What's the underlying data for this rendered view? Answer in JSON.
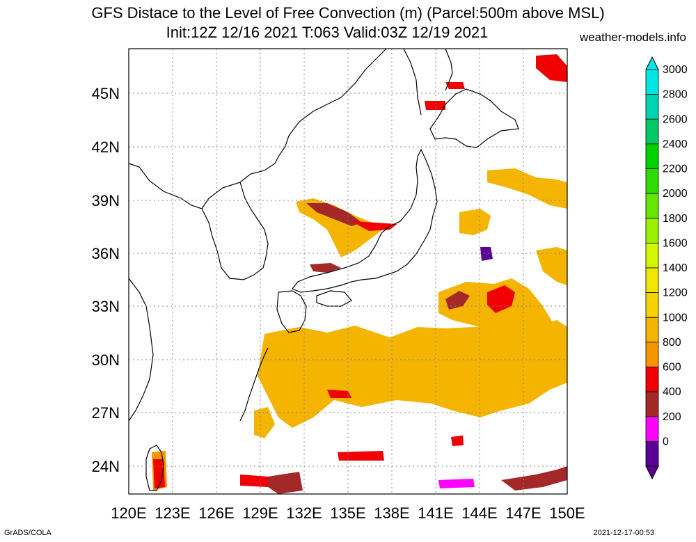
{
  "title": {
    "line1": "GFS Distace to the Level of Free Convection (m) (Parcel:500m above MSL)",
    "line2": "Init:12Z 12/16 2021 T:063 Valid:03Z 12/19 2021",
    "site": "weather-models.info"
  },
  "axes": {
    "lat_labels": [
      "45N",
      "42N",
      "39N",
      "36N",
      "33N",
      "30N",
      "27N",
      "24N"
    ],
    "lon_labels": [
      "120E",
      "123E",
      "126E",
      "129E",
      "132E",
      "135E",
      "138E",
      "141E",
      "144E",
      "147E",
      "150E"
    ]
  },
  "colorbar": {
    "labels": [
      "3000",
      "2800",
      "2600",
      "2400",
      "2200",
      "2000",
      "1800",
      "1600",
      "1400",
      "1200",
      "1000",
      "800",
      "600",
      "400",
      "200",
      "0"
    ],
    "colors": [
      "#00e6e6",
      "#00d2b4",
      "#00c864",
      "#00d200",
      "#2ddc00",
      "#64e600",
      "#9bf000",
      "#d2f500",
      "#f0e600",
      "#f5d200",
      "#f5b400",
      "#f59600",
      "#f00000",
      "#a52828",
      "#ff00ff",
      "#5a0096"
    ]
  },
  "footer": {
    "left": "GrADS/COLA",
    "right": "2021-12-17-00:53"
  }
}
